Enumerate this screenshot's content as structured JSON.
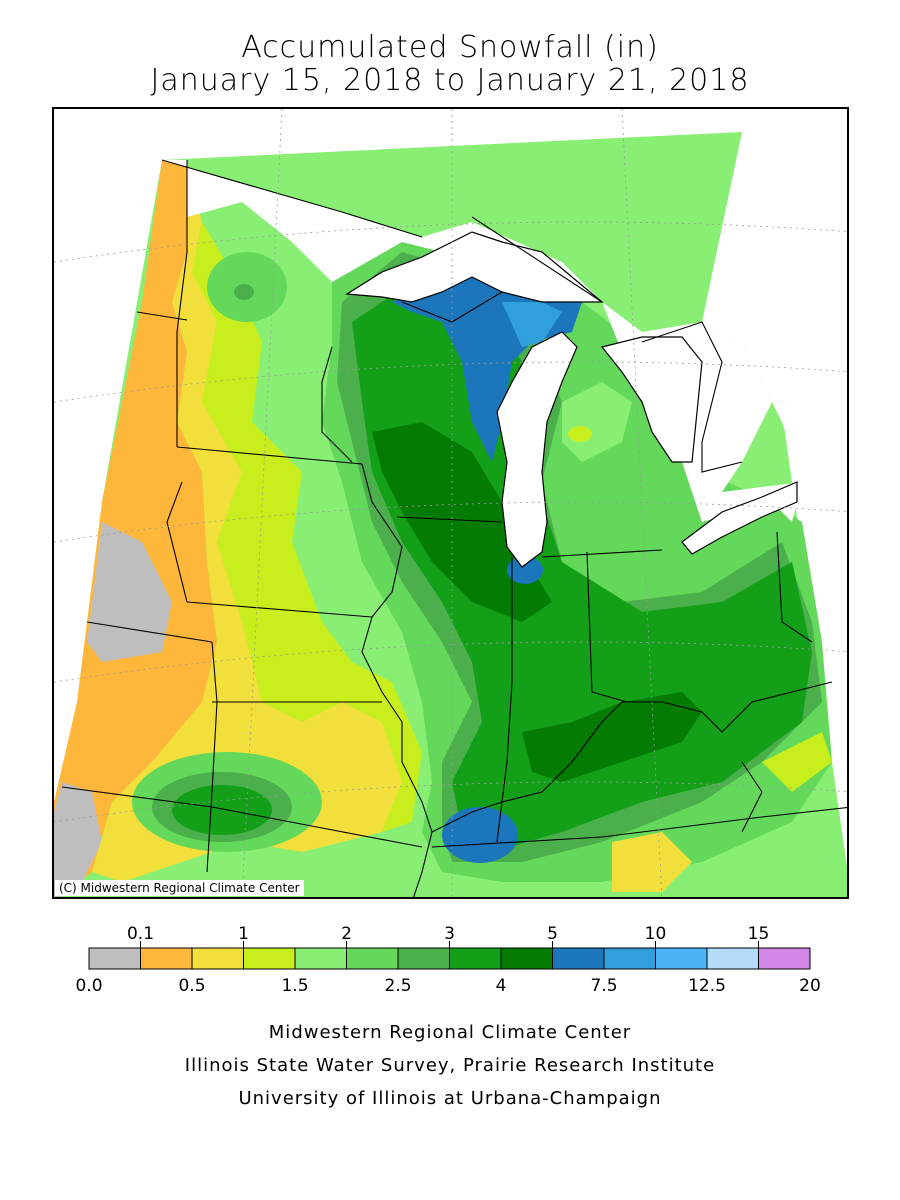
{
  "title": {
    "line1": "Accumulated Snowfall (in)",
    "line2": "January 15, 2018 to January 21, 2018"
  },
  "map": {
    "credit": "(C) Midwestern Regional Climate Center",
    "colors": {
      "c0_0.1": "#bebebe",
      "c0.1_0.5": "#ffb73b",
      "c0.5_1": "#f2df3c",
      "c1_1.5": "#c8ef1d",
      "c1.5_2": "#88ef74",
      "c2_2.5": "#63d85b",
      "c2.5_3": "#4baf4b",
      "c3_4": "#13a018",
      "c4_5": "#047c04",
      "c5_7.5": "#1c76bc",
      "c7.5_10": "#30a0dc",
      "c10_12.5": "#4cb4f4",
      "c12.5_15": "#b4dcf8",
      "c15_20": "#d286e8",
      "lake": "#ffffff",
      "boundary": "#000000"
    }
  },
  "legend": {
    "top_labels": [
      "0.1",
      "1",
      "2",
      "3",
      "5",
      "10",
      "15"
    ],
    "bottom_labels": [
      "0.0",
      "0.5",
      "1.5",
      "2.5",
      "4",
      "7.5",
      "12.5",
      "20"
    ],
    "colors": [
      "#bebebe",
      "#ffb73b",
      "#f2df3c",
      "#c8ef1d",
      "#88ef74",
      "#63d85b",
      "#4baf4b",
      "#13a018",
      "#047c04",
      "#1c76bc",
      "#30a0dc",
      "#4cb4f4",
      "#b4dcf8",
      "#d286e8"
    ]
  },
  "footer": {
    "line1": "Midwestern Regional Climate Center",
    "line2": "Illinois State Water Survey, Prairie Research Institute",
    "line3": "University of Illinois at Urbana-Champaign"
  }
}
